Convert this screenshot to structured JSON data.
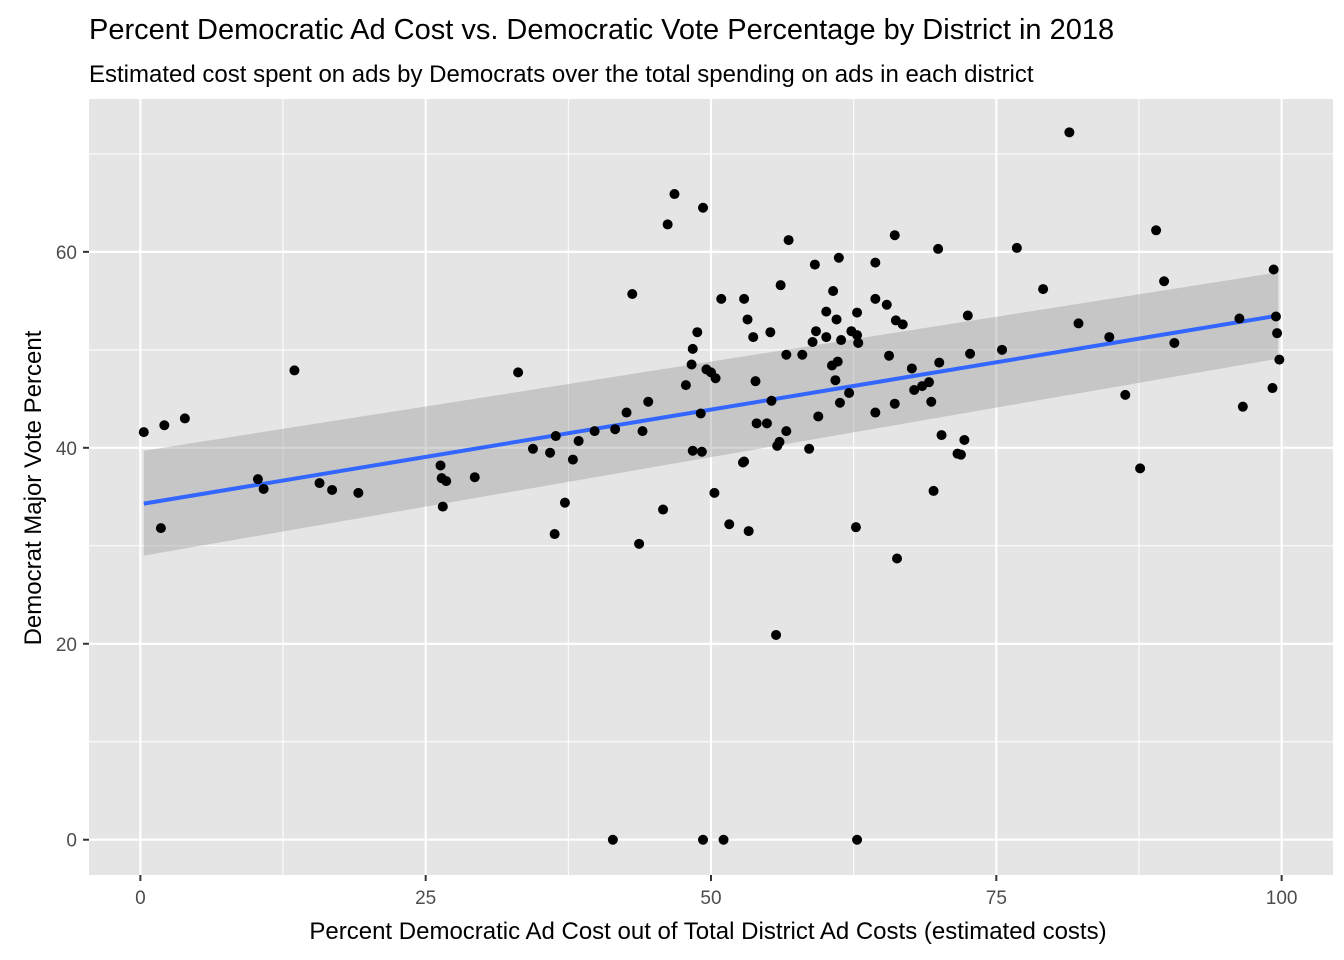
{
  "chart_data": {
    "type": "scatter",
    "title": "Percent Democratic Ad Cost vs. Democratic Vote Percentage by District in 2018",
    "subtitle": "Estimated cost spent on ads by Democrats over the total spending on ads in each district",
    "xlabel": "Percent Democratic Ad Cost out of Total District Ad Costs (estimated costs)",
    "ylabel": "Democrat Major Vote Percent",
    "xlim": [
      -4.5,
      104.5
    ],
    "ylim": [
      -3.6,
      75.6
    ],
    "x_ticks": [
      0,
      25,
      50,
      75,
      100
    ],
    "x_tick_labels": [
      "0",
      "25",
      "50",
      "75",
      "100"
    ],
    "y_ticks": [
      0,
      20,
      40,
      60
    ],
    "y_tick_labels": [
      "0",
      "20",
      "40",
      "60"
    ],
    "grid": true,
    "legend": "none",
    "colors": {
      "panel": "#e5e5e5",
      "grid": "#ffffff",
      "points": "#000000",
      "fit_line": "#3366ff",
      "ribbon": "#999999"
    },
    "fit": {
      "x": [
        0.3,
        99.7
      ],
      "y": [
        34.3,
        53.5
      ],
      "ci_lower": [
        29.0,
        49.1
      ],
      "ci_upper": [
        39.7,
        57.9
      ]
    },
    "series": [
      {
        "points": [
          [
            0.3,
            41.6
          ],
          [
            1.8,
            31.8
          ],
          [
            2.1,
            42.3
          ],
          [
            3.9,
            43.0
          ],
          [
            10.3,
            36.8
          ],
          [
            10.8,
            35.8
          ],
          [
            13.5,
            47.9
          ],
          [
            15.7,
            36.4
          ],
          [
            16.8,
            35.7
          ],
          [
            19.1,
            35.4
          ],
          [
            26.3,
            38.2
          ],
          [
            26.4,
            36.9
          ],
          [
            26.5,
            34.0
          ],
          [
            26.8,
            36.6
          ],
          [
            29.3,
            37.0
          ],
          [
            33.1,
            47.7
          ],
          [
            34.4,
            39.9
          ],
          [
            35.9,
            39.5
          ],
          [
            36.3,
            31.2
          ],
          [
            36.4,
            41.2
          ],
          [
            37.2,
            34.4
          ],
          [
            37.9,
            38.8
          ],
          [
            38.4,
            40.7
          ],
          [
            39.8,
            41.7
          ],
          [
            41.4,
            0.0
          ],
          [
            41.6,
            41.9
          ],
          [
            42.6,
            43.6
          ],
          [
            43.1,
            55.7
          ],
          [
            43.7,
            30.2
          ],
          [
            44.0,
            41.7
          ],
          [
            44.5,
            44.7
          ],
          [
            45.8,
            33.7
          ],
          [
            46.2,
            62.8
          ],
          [
            46.8,
            65.9
          ],
          [
            47.8,
            46.4
          ],
          [
            48.3,
            48.5
          ],
          [
            48.4,
            50.1
          ],
          [
            48.4,
            39.7
          ],
          [
            48.8,
            51.8
          ],
          [
            49.1,
            43.5
          ],
          [
            49.2,
            39.6
          ],
          [
            49.3,
            64.5
          ],
          [
            49.3,
            0.0
          ],
          [
            49.6,
            48.0
          ],
          [
            50.0,
            47.7
          ],
          [
            50.3,
            35.4
          ],
          [
            50.4,
            47.1
          ],
          [
            50.9,
            55.2
          ],
          [
            51.1,
            0.0
          ],
          [
            51.6,
            32.2
          ],
          [
            52.8,
            38.5
          ],
          [
            52.9,
            55.2
          ],
          [
            52.9,
            38.6
          ],
          [
            53.2,
            53.1
          ],
          [
            53.3,
            31.5
          ],
          [
            53.7,
            51.3
          ],
          [
            53.9,
            46.8
          ],
          [
            54.0,
            42.5
          ],
          [
            54.9,
            42.5
          ],
          [
            55.2,
            51.8
          ],
          [
            55.3,
            44.8
          ],
          [
            55.7,
            20.9
          ],
          [
            55.8,
            40.2
          ],
          [
            56.0,
            40.6
          ],
          [
            56.1,
            56.6
          ],
          [
            56.6,
            49.5
          ],
          [
            56.6,
            41.7
          ],
          [
            56.8,
            61.2
          ],
          [
            58.0,
            49.5
          ],
          [
            58.6,
            39.9
          ],
          [
            58.9,
            50.8
          ],
          [
            59.1,
            58.7
          ],
          [
            59.2,
            51.9
          ],
          [
            59.4,
            43.2
          ],
          [
            60.1,
            51.3
          ],
          [
            60.1,
            53.9
          ],
          [
            60.6,
            48.4
          ],
          [
            60.7,
            56.0
          ],
          [
            60.9,
            46.9
          ],
          [
            61.0,
            53.1
          ],
          [
            61.1,
            48.8
          ],
          [
            61.2,
            59.4
          ],
          [
            61.3,
            44.6
          ],
          [
            61.4,
            51.0
          ],
          [
            62.1,
            45.6
          ],
          [
            62.3,
            51.9
          ],
          [
            62.7,
            31.9
          ],
          [
            62.8,
            53.8
          ],
          [
            62.8,
            51.5
          ],
          [
            62.8,
            0.0
          ],
          [
            62.9,
            50.7
          ],
          [
            64.4,
            55.2
          ],
          [
            64.4,
            58.9
          ],
          [
            64.4,
            43.6
          ],
          [
            65.4,
            54.6
          ],
          [
            65.6,
            49.4
          ],
          [
            66.1,
            44.5
          ],
          [
            66.1,
            61.7
          ],
          [
            66.2,
            53.0
          ],
          [
            66.3,
            28.7
          ],
          [
            66.8,
            52.6
          ],
          [
            67.6,
            48.1
          ],
          [
            67.8,
            45.9
          ],
          [
            68.5,
            46.3
          ],
          [
            69.1,
            46.7
          ],
          [
            69.3,
            44.7
          ],
          [
            69.5,
            35.6
          ],
          [
            69.9,
            60.3
          ],
          [
            70.0,
            48.7
          ],
          [
            70.2,
            41.3
          ],
          [
            71.6,
            39.4
          ],
          [
            71.9,
            39.3
          ],
          [
            72.2,
            40.8
          ],
          [
            72.5,
            53.5
          ],
          [
            72.7,
            49.6
          ],
          [
            75.5,
            50.0
          ],
          [
            76.8,
            60.4
          ],
          [
            79.1,
            56.2
          ],
          [
            81.4,
            72.2
          ],
          [
            82.2,
            52.7
          ],
          [
            84.9,
            51.3
          ],
          [
            86.3,
            45.4
          ],
          [
            87.6,
            37.9
          ],
          [
            89.0,
            62.2
          ],
          [
            89.7,
            57.0
          ],
          [
            90.6,
            50.7
          ],
          [
            96.3,
            53.2
          ],
          [
            96.6,
            44.2
          ],
          [
            99.2,
            46.1
          ],
          [
            99.3,
            58.2
          ],
          [
            99.5,
            53.4
          ],
          [
            99.6,
            51.7
          ],
          [
            99.8,
            49.0
          ]
        ]
      }
    ]
  }
}
